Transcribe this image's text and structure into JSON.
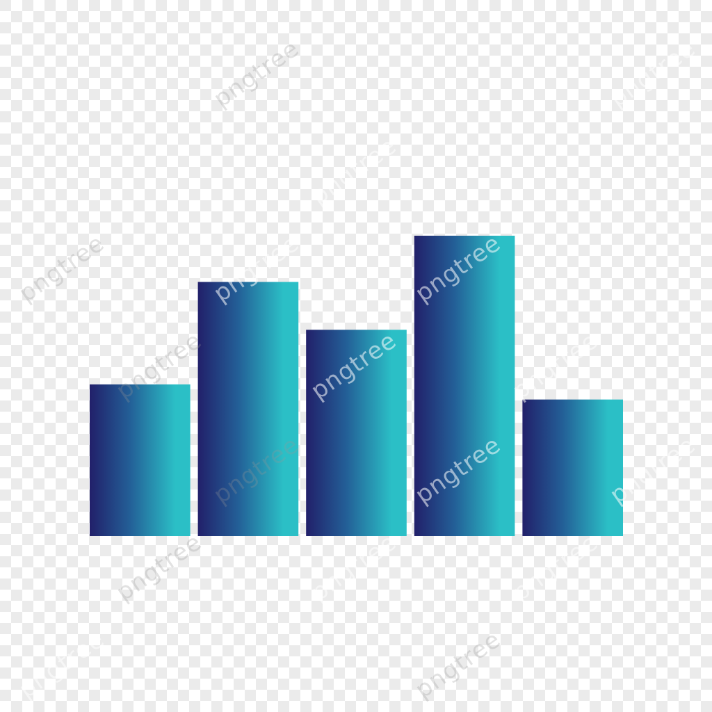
{
  "chart_data": {
    "type": "bar",
    "categories": [
      "",
      "",
      "",
      "",
      ""
    ],
    "values": [
      2.0,
      3.35,
      2.72,
      3.96,
      1.8
    ],
    "title": "",
    "xlabel": "",
    "ylabel": "",
    "ylim": [
      0,
      5.5
    ],
    "grid": false,
    "legend": "none",
    "colors": {
      "gradient_start": "#22206a",
      "gradient_end": "#2bbfc6"
    }
  },
  "background": {
    "checker_light": "#ffffff",
    "checker_dark": "#ebebeb"
  },
  "watermark": {
    "text": "pngtree"
  }
}
